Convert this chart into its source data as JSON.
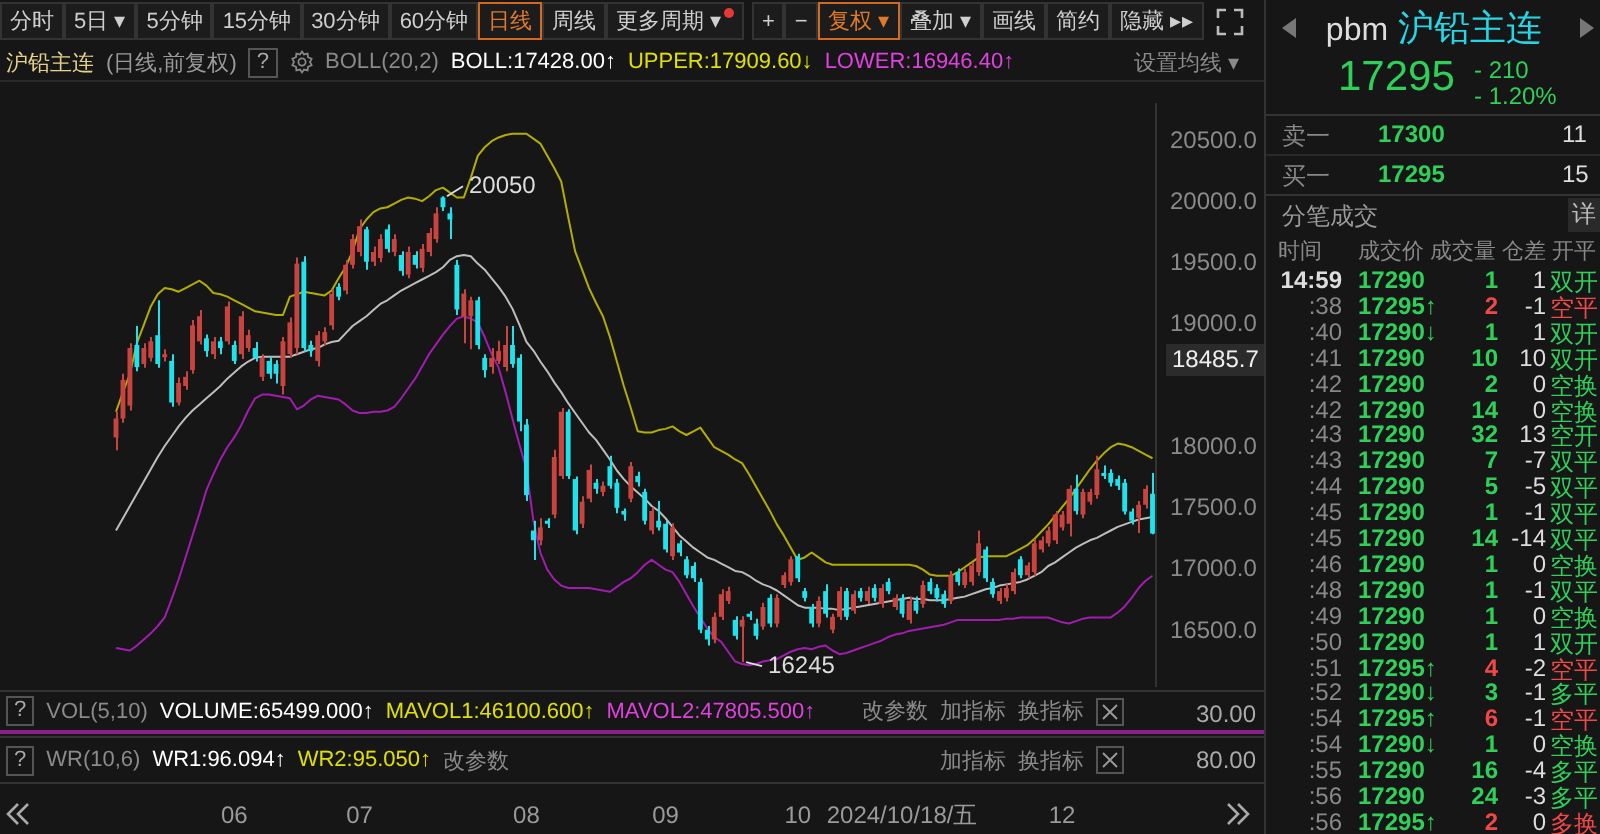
{
  "chart_data": [
    {
      "type": "candlestick",
      "categories": [
        null,
        null,
        null,
        null,
        null,
        null,
        null,
        null,
        null,
        null,
        null,
        null,
        null,
        null,
        null,
        null,
        null,
        "06",
        null,
        null,
        null,
        null,
        null,
        null,
        null,
        null,
        null,
        null,
        null,
        null,
        null,
        null,
        null,
        null,
        null,
        "07",
        null,
        null,
        null,
        null,
        null,
        null,
        null,
        null,
        null,
        null,
        null,
        null,
        null,
        null,
        null,
        null,
        null,
        null,
        null,
        null,
        null,
        null,
        null,
        "08",
        null,
        null,
        null,
        null,
        null,
        null,
        null,
        null,
        null,
        null,
        null,
        null,
        null,
        null,
        null,
        null,
        null,
        null,
        null,
        "09",
        null,
        null,
        null,
        null,
        null,
        null,
        null,
        null,
        null,
        null,
        null,
        null,
        null,
        null,
        null,
        null,
        null,
        null,
        "10",
        null,
        null,
        null,
        null,
        null,
        null,
        null,
        null,
        null,
        null,
        null,
        null,
        null,
        null,
        "2024/10/18/五",
        null,
        null,
        null,
        null,
        null,
        null,
        null,
        null,
        null,
        null,
        null,
        null,
        null,
        null,
        null,
        null,
        null,
        null,
        null,
        null,
        null,
        null,
        "12",
        null,
        null,
        null,
        null,
        null,
        null,
        null,
        null,
        null,
        null,
        null,
        null,
        null
      ],
      "ohlc": [
        [
          18080,
          18290,
          17975,
          18235
        ],
        [
          18235,
          18600,
          18200,
          18550
        ],
        [
          18340,
          18850,
          18300,
          18810
        ],
        [
          18835,
          18990,
          18620,
          18655
        ],
        [
          18680,
          18850,
          18650,
          18810
        ],
        [
          18730,
          18900,
          18700,
          18865
        ],
        [
          18915,
          19200,
          18650,
          18680
        ],
        [
          18735,
          18800,
          18700,
          18760
        ],
        [
          18705,
          18760,
          18330,
          18365
        ],
        [
          18365,
          18570,
          18340,
          18525
        ],
        [
          18500,
          18620,
          18470,
          18575
        ],
        [
          18630,
          19040,
          18600,
          18995
        ],
        [
          18865,
          19120,
          18840,
          19070
        ],
        [
          18890,
          18920,
          18740,
          18785
        ],
        [
          18760,
          18900,
          18720,
          18865
        ],
        [
          18865,
          18900,
          18760,
          18810
        ],
        [
          18865,
          19190,
          18840,
          19150
        ],
        [
          18835,
          18870,
          18680,
          18705
        ],
        [
          18760,
          19110,
          18720,
          19070
        ],
        [
          18810,
          18960,
          18780,
          18915
        ],
        [
          18810,
          18860,
          18700,
          18730
        ],
        [
          18575,
          18760,
          18540,
          18730
        ],
        [
          18705,
          18740,
          18560,
          18600
        ],
        [
          18680,
          18710,
          18520,
          18600
        ],
        [
          18500,
          18900,
          18430,
          18865
        ],
        [
          18760,
          19060,
          18730,
          19020
        ],
        [
          18810,
          19550,
          18760,
          19500
        ],
        [
          19515,
          19560,
          18780,
          18810
        ],
        [
          18835,
          18870,
          18740,
          18785
        ],
        [
          18705,
          18950,
          18660,
          18915
        ],
        [
          18865,
          18980,
          18830,
          18940
        ],
        [
          18995,
          19290,
          18960,
          19255
        ],
        [
          19310,
          19340,
          19200,
          19230
        ],
        [
          19280,
          19530,
          19250,
          19490
        ],
        [
          19490,
          19740,
          19460,
          19700
        ],
        [
          19595,
          19860,
          19560,
          19805
        ],
        [
          19780,
          19800,
          19450,
          19515
        ],
        [
          19515,
          19640,
          19480,
          19595
        ],
        [
          19545,
          19740,
          19510,
          19700
        ],
        [
          19780,
          19820,
          19590,
          19620
        ],
        [
          19595,
          19740,
          19560,
          19700
        ],
        [
          19570,
          19600,
          19400,
          19440
        ],
        [
          19410,
          19640,
          19380,
          19595
        ],
        [
          19570,
          19600,
          19460,
          19490
        ],
        [
          19465,
          19660,
          19430,
          19620
        ],
        [
          19595,
          19790,
          19560,
          19750
        ],
        [
          19700,
          19960,
          19670,
          19910
        ],
        [
          20040,
          20050,
          19930,
          19960
        ],
        [
          19910,
          19960,
          19700,
          19860
        ],
        [
          19490,
          19530,
          19080,
          19125
        ],
        [
          19070,
          19290,
          18850,
          19255
        ],
        [
          19070,
          19230,
          18800,
          19200
        ],
        [
          19200,
          19230,
          18800,
          18835
        ],
        [
          18730,
          18760,
          18570,
          18630
        ],
        [
          18655,
          18810,
          18600,
          18730
        ],
        [
          18705,
          18870,
          18680,
          18785
        ],
        [
          18655,
          18990,
          18620,
          18835
        ],
        [
          18835,
          18990,
          18650,
          18680
        ],
        [
          18730,
          18760,
          18130,
          18210
        ],
        [
          18185,
          18230,
          17560,
          17610
        ],
        [
          17320,
          17400,
          17080,
          17240
        ],
        [
          17240,
          17420,
          17200,
          17345
        ],
        [
          17400,
          17420,
          17340,
          17375
        ],
        [
          17450,
          17980,
          17420,
          17920
        ],
        [
          17765,
          18320,
          17740,
          18290
        ],
        [
          18290,
          18310,
          17740,
          17765
        ],
        [
          17740,
          17760,
          17290,
          17320
        ],
        [
          17375,
          17600,
          17340,
          17555
        ],
        [
          17580,
          17860,
          17550,
          17815
        ],
        [
          17710,
          17740,
          17620,
          17660
        ],
        [
          17635,
          17720,
          17600,
          17685
        ],
        [
          17845,
          17930,
          17660,
          17685
        ],
        [
          17710,
          17740,
          17460,
          17505
        ],
        [
          17480,
          17500,
          17400,
          17450
        ],
        [
          17580,
          17880,
          17550,
          17845
        ],
        [
          17765,
          17800,
          17680,
          17715
        ],
        [
          17635,
          17660,
          17370,
          17400
        ],
        [
          17320,
          17510,
          17290,
          17480
        ],
        [
          17400,
          17560,
          17320,
          17345
        ],
        [
          17375,
          17400,
          17140,
          17165
        ],
        [
          17110,
          17380,
          17080,
          17345
        ],
        [
          17215,
          17240,
          17110,
          17140
        ],
        [
          17085,
          17110,
          16930,
          16955
        ],
        [
          17030,
          17060,
          16900,
          16930
        ],
        [
          16900,
          16930,
          16480,
          16510
        ],
        [
          16510,
          16540,
          16380,
          16430
        ],
        [
          16430,
          16650,
          16400,
          16615
        ],
        [
          16615,
          16840,
          16590,
          16800
        ],
        [
          16745,
          16860,
          16720,
          16825
        ],
        [
          16590,
          16620,
          16430,
          16460
        ],
        [
          16535,
          16620,
          16245,
          16590
        ],
        [
          16640,
          16660,
          16590,
          16615
        ],
        [
          16560,
          16600,
          16430,
          16460
        ],
        [
          16535,
          16730,
          16510,
          16695
        ],
        [
          16770,
          16800,
          16530,
          16560
        ],
        [
          16560,
          16800,
          16530,
          16770
        ],
        [
          16875,
          16980,
          16850,
          16955
        ],
        [
          16900,
          17110,
          16870,
          17085
        ],
        [
          17110,
          17130,
          16900,
          16930
        ],
        [
          16825,
          16850,
          16740,
          16770
        ],
        [
          16695,
          16720,
          16530,
          16560
        ],
        [
          16560,
          16780,
          16530,
          16745
        ],
        [
          16825,
          16880,
          16610,
          16640
        ],
        [
          16510,
          16640,
          16480,
          16615
        ],
        [
          16615,
          16860,
          16590,
          16825
        ],
        [
          16825,
          16850,
          16590,
          16615
        ],
        [
          16665,
          16830,
          16640,
          16800
        ],
        [
          16825,
          16850,
          16740,
          16770
        ],
        [
          16745,
          16860,
          16720,
          16825
        ],
        [
          16850,
          16880,
          16740,
          16770
        ],
        [
          16720,
          16880,
          16690,
          16850
        ],
        [
          16900,
          16930,
          16800,
          16825
        ],
        [
          16695,
          16800,
          16670,
          16770
        ],
        [
          16770,
          16800,
          16610,
          16640
        ],
        [
          16590,
          16780,
          16560,
          16745
        ],
        [
          16745,
          16780,
          16640,
          16665
        ],
        [
          16720,
          16910,
          16690,
          16875
        ],
        [
          16900,
          16930,
          16800,
          16825
        ],
        [
          16850,
          16880,
          16740,
          16770
        ],
        [
          16800,
          16830,
          16690,
          16720
        ],
        [
          16745,
          16990,
          16720,
          16955
        ],
        [
          16980,
          17010,
          16870,
          16900
        ],
        [
          16875,
          17010,
          16850,
          16980
        ],
        [
          16900,
          17060,
          16870,
          17035
        ],
        [
          16980,
          17320,
          16950,
          17215
        ],
        [
          17165,
          17190,
          16900,
          16930
        ],
        [
          16900,
          16930,
          16770,
          16800
        ],
        [
          16745,
          16850,
          16720,
          16825
        ],
        [
          16770,
          16880,
          16740,
          16850
        ],
        [
          16825,
          17010,
          16800,
          16980
        ],
        [
          17085,
          17110,
          16930,
          16955
        ],
        [
          16955,
          17060,
          16930,
          17035
        ],
        [
          16980,
          17250,
          16950,
          17215
        ],
        [
          17165,
          17270,
          17140,
          17240
        ],
        [
          17215,
          17350,
          17190,
          17320
        ],
        [
          17240,
          17480,
          17210,
          17450
        ],
        [
          17345,
          17480,
          17320,
          17450
        ],
        [
          17375,
          17690,
          17270,
          17660
        ],
        [
          17660,
          17775,
          17450,
          17480
        ],
        [
          17450,
          17660,
          17420,
          17635
        ],
        [
          17555,
          17660,
          17530,
          17635
        ],
        [
          17610,
          17930,
          17580,
          17820
        ],
        [
          17790,
          17850,
          17740,
          17765
        ],
        [
          17790,
          17820,
          17680,
          17710
        ],
        [
          17740,
          17770,
          17650,
          17685
        ],
        [
          17710,
          17740,
          17450,
          17475
        ],
        [
          17475,
          17500,
          17370,
          17400
        ],
        [
          17425,
          17560,
          17300,
          17530
        ],
        [
          17530,
          17690,
          17500,
          17660
        ],
        [
          17620,
          17790,
          17290,
          17295
        ]
      ],
      "series": [
        {
          "type": "line",
          "color": "#b3ad00",
          "values": [
            18290,
            18450,
            18600,
            18850,
            19000,
            19150,
            19250,
            19300,
            19290,
            19270,
            19300,
            19330,
            19360,
            19320,
            19260,
            19250,
            19230,
            19200,
            19170,
            19140,
            19110,
            19100,
            19090,
            19080,
            19080,
            19230,
            19250,
            19270,
            19260,
            19250,
            19240,
            19280,
            19380,
            19470,
            19600,
            19780,
            19860,
            19920,
            19950,
            19960,
            19990,
            20020,
            20040,
            20030,
            20010,
            20050,
            20100,
            20120,
            20080,
            20040,
            20040,
            20200,
            20380,
            20450,
            20500,
            20530,
            20550,
            20560,
            20560,
            20560,
            20520,
            20480,
            20380,
            20280,
            20170,
            19880,
            19600,
            19450,
            19300,
            19180,
            19070,
            18900,
            18700,
            18500,
            18320,
            18130,
            18120,
            18120,
            18140,
            18150,
            18170,
            18130,
            18100,
            18130,
            18160,
            18080,
            18000,
            17970,
            17940,
            17900,
            17870,
            17780,
            17680,
            17580,
            17480,
            17370,
            17280,
            17180,
            17080,
            17100,
            17140,
            17100,
            17060,
            17040,
            17040,
            17040,
            17040,
            17040,
            17040,
            17040,
            17040,
            17040,
            17040,
            17040,
            17040,
            17030,
            17000,
            16960,
            16950,
            16950,
            16950,
            16980,
            17020,
            17060,
            17100,
            17110,
            17110,
            17110,
            17110,
            17140,
            17170,
            17200,
            17250,
            17310,
            17370,
            17440,
            17510,
            17580,
            17660,
            17740,
            17820,
            17890,
            17950,
            18000,
            18030,
            18020,
            18000,
            17970,
            17940,
            17910
          ]
        },
        {
          "type": "line",
          "color": "#bdbdbd",
          "values": [
            17320,
            17420,
            17520,
            17620,
            17720,
            17820,
            17920,
            18010,
            18090,
            18170,
            18240,
            18300,
            18350,
            18400,
            18450,
            18500,
            18560,
            18610,
            18660,
            18700,
            18730,
            18740,
            18740,
            18740,
            18740,
            18740,
            18760,
            18780,
            18800,
            18810,
            18840,
            18860,
            18870,
            18930,
            18990,
            19030,
            19070,
            19120,
            19170,
            19200,
            19240,
            19280,
            19310,
            19340,
            19370,
            19400,
            19430,
            19470,
            19530,
            19560,
            19570,
            19560,
            19500,
            19450,
            19380,
            19310,
            19230,
            19130,
            19000,
            18860,
            18790,
            18700,
            18620,
            18530,
            18450,
            18360,
            18280,
            18200,
            18120,
            18060,
            17980,
            17900,
            17810,
            17740,
            17680,
            17630,
            17580,
            17520,
            17480,
            17420,
            17350,
            17280,
            17230,
            17180,
            17140,
            17100,
            17080,
            17050,
            17020,
            16990,
            16980,
            16950,
            16910,
            16880,
            16860,
            16830,
            16790,
            16750,
            16710,
            16690,
            16690,
            16690,
            16680,
            16680,
            16670,
            16680,
            16690,
            16700,
            16710,
            16720,
            16730,
            16740,
            16750,
            16760,
            16770,
            16760,
            16760,
            16750,
            16750,
            16750,
            16760,
            16770,
            16780,
            16800,
            16820,
            16840,
            16850,
            16870,
            16880,
            16890,
            16900,
            16920,
            16950,
            16980,
            17030,
            17060,
            17100,
            17140,
            17180,
            17210,
            17240,
            17260,
            17290,
            17320,
            17350,
            17370,
            17390,
            17410,
            17420,
            17430
          ]
        },
        {
          "type": "line",
          "color": "#a21caf",
          "values": [
            16360,
            16350,
            16340,
            16380,
            16430,
            16480,
            16540,
            16610,
            16760,
            16920,
            17100,
            17280,
            17460,
            17650,
            17780,
            17900,
            18000,
            18080,
            18180,
            18300,
            18400,
            18430,
            18430,
            18420,
            18410,
            18400,
            18310,
            18340,
            18390,
            18420,
            18410,
            18400,
            18390,
            18350,
            18300,
            18280,
            18280,
            18290,
            18290,
            18300,
            18330,
            18400,
            18480,
            18560,
            18660,
            18760,
            18840,
            18920,
            18990,
            19050,
            19070,
            19050,
            19020,
            18900,
            18760,
            18650,
            18450,
            18230,
            18020,
            17820,
            17400,
            17140,
            17000,
            16920,
            16870,
            16850,
            16850,
            16850,
            16850,
            16840,
            16830,
            16820,
            16860,
            16900,
            16930,
            16980,
            17040,
            17080,
            17040,
            17000,
            16980,
            16900,
            16800,
            16700,
            16610,
            16520,
            16450,
            16410,
            16330,
            16250,
            16230,
            16220,
            16230,
            16250,
            16260,
            16270,
            16300,
            16330,
            16350,
            16360,
            16350,
            16370,
            16380,
            16340,
            16310,
            16320,
            16340,
            16360,
            16380,
            16400,
            16420,
            16450,
            16470,
            16480,
            16500,
            16510,
            16520,
            16530,
            16540,
            16550,
            16570,
            16590,
            16590,
            16590,
            16590,
            16590,
            16590,
            16590,
            16600,
            16600,
            16610,
            16610,
            16610,
            16610,
            16610,
            16590,
            16570,
            16560,
            16580,
            16600,
            16610,
            16610,
            16610,
            16610,
            16650,
            16700,
            16770,
            16850,
            16910,
            16950
          ]
        }
      ],
      "ylim": [
        16050,
        20800
      ],
      "yticks": [
        {
          "value": 16500,
          "label": "16500.0"
        },
        {
          "value": 17000,
          "label": "17000.0"
        },
        {
          "value": 17500,
          "label": "17500.0"
        },
        {
          "value": 18000,
          "label": "18000.0"
        },
        {
          "value": 19000,
          "label": "19000.0"
        },
        {
          "value": 19500,
          "label": "19500.0"
        },
        {
          "value": 20000,
          "label": "20000.0"
        },
        {
          "value": 20500,
          "label": "20500.0"
        }
      ],
      "grid": false,
      "annotations": [
        "分时",
        "5日 ▾",
        "5分钟",
        "15分钟",
        "30分钟",
        "60分钟",
        "日线",
        "周线",
        "更多周期 ▾",
        "+",
        "−",
        "复权 ▾",
        "叠加 ▾",
        "画线",
        "简约",
        "隐藏 ▸▸",
        "沪铅主连",
        "(日线,前复权)",
        "?",
        "BOLL(20,2)",
        "BOLL:17428.00↑",
        "UPPER:17909.60↓",
        "LOWER:16946.40↑",
        "设置均线 ▾",
        "?",
        "VOL(5,10)",
        "VOLUME:65499.000↑",
        "MAVOL1:46100.600↑",
        "MAVOL2:47805.500↑",
        "改参数",
        "加指标",
        "换指标",
        "30.00",
        "?",
        "WR(10,6)",
        "WR1:96.094↑",
        "WR2:95.050↑",
        "改参数",
        "加指标",
        "换指标",
        "80.00",
        "20050",
        "16245",
        "18485.7"
      ]
    },
    {
      "type": "other",
      "title": "pbm 沪铅主连",
      "annotations": [
        "17295",
        "- 210",
        "- 1.20%",
        "卖一",
        "17300",
        "11",
        "买一",
        "17295",
        "15",
        "分笔成交",
        "详",
        "时间 成交价 成交量 仓差 开平",
        "14:59 17290 1 1 双开",
        ":38 17295↑ 2 -1 空平",
        ":40 17290↓ 1 1 双开",
        ":41 17290 10 10 双开",
        ":42 17290 2 0 空换",
        ":42 17290 14 0 空换",
        ":43 17290 32 13 空开",
        ":43 17290 7 -7 双平",
        ":44 17290 5 -5 双平",
        ":45 17290 1 -1 双平",
        ":45 17290 14 -14 双平",
        ":46 17290 1 0 空换",
        ":48 17290 1 -1 双平",
        ":49 17290 1 0 空换",
        ":50 17290 1 1 双开",
        ":51 17295↑ 4 -2 空平",
        ":52 17290↓ 3 -1 多平",
        ":54 17295↑ 6 -1 空平",
        ":54 17290↓ 1 0 空换",
        ":55 17290 16 -4 多平",
        ":56 17290 24 -3 多平",
        ":56 17295↑ 2 0 多换"
      ]
    }
  ]
}
